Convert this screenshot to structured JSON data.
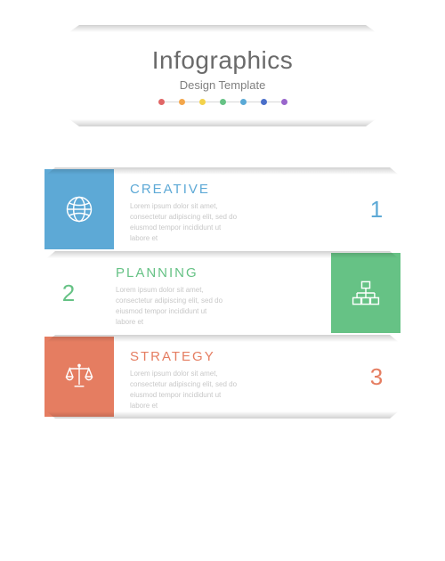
{
  "header": {
    "title": "Infographics",
    "subtitle": "Design Template",
    "title_color": "#6a6a6a",
    "subtitle_color": "#808080",
    "dot_colors": [
      "#e06666",
      "#f3a64b",
      "#f3d24b",
      "#66c285",
      "#5aa9d6",
      "#4a6fc9",
      "#9966cc"
    ]
  },
  "body_color": "#c8c8c8",
  "lorem": "Lorem ipsum dolor sit amet,\nconsectetur adipiscing elit, sed do\neiusmod tempor incididunt ut\nlabore et",
  "items": [
    {
      "number": "1",
      "heading": "CREATIVE",
      "color": "#5da9d6",
      "icon": "globe",
      "icon_side": "left"
    },
    {
      "number": "2",
      "heading": "PLANNING",
      "color": "#66c285",
      "icon": "org",
      "icon_side": "right"
    },
    {
      "number": "3",
      "heading": "STRATEGY",
      "color": "#e57d61",
      "icon": "scales",
      "icon_side": "left"
    }
  ]
}
